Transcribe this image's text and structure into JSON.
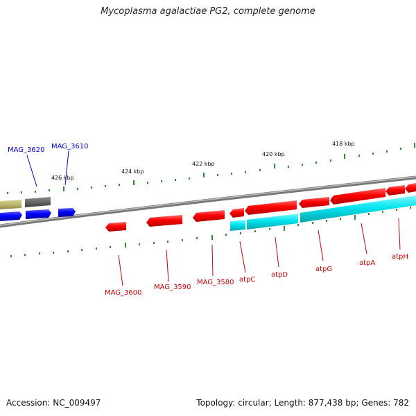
{
  "title": "Mycoplasma agalactiae PG2, complete genome",
  "footer": {
    "accession": "Accession: NC_009497",
    "summary": "Topology: circular; Length: 877,438 bp; Genes: 782"
  },
  "colors": {
    "backbone": "#8a8a8a",
    "tick": "#2e8b2e",
    "forward_gene": "#ff0000",
    "reverse_gene": "#0000ff",
    "cds_cyan": "#00e5ee",
    "olive_feature": "#bdb76b",
    "gray_feature": "#666666",
    "label_forward": "#cc0000",
    "label_reverse": "#0000cc"
  },
  "scale_labels": [
    "426 kbp",
    "424 kbp",
    "422 kbp",
    "420 kbp",
    "418 kbp"
  ],
  "gene_labels": [
    {
      "text": "MAG_3620",
      "strand": "reverse"
    },
    {
      "text": "MAG_3610",
      "strand": "reverse"
    },
    {
      "text": "MAG_3600",
      "strand": "forward"
    },
    {
      "text": "MAG_3590",
      "strand": "forward"
    },
    {
      "text": "MAG_3580",
      "strand": "forward"
    },
    {
      "text": "atpC",
      "strand": "forward"
    },
    {
      "text": "atpD",
      "strand": "forward"
    },
    {
      "text": "atpG",
      "strand": "forward"
    },
    {
      "text": "atpA",
      "strand": "forward"
    },
    {
      "text": "atpH",
      "strand": "forward"
    }
  ]
}
